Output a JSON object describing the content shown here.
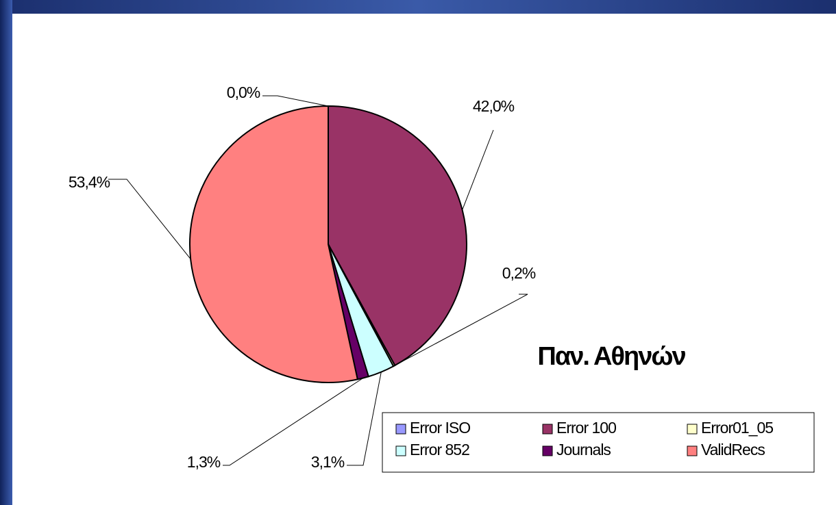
{
  "chart_data": {
    "type": "pie",
    "title": "Παν. Αθηνών",
    "categories": [
      "Error ISO",
      "Error 100",
      "Error01_05",
      "Error 852",
      "Journals",
      "ValidRecs"
    ],
    "values": [
      0.0,
      42.0,
      0.2,
      3.1,
      1.3,
      53.4
    ],
    "value_labels": [
      "0,0%",
      "42,0%",
      "0,2%",
      "3,1%",
      "1,3%",
      "53,4%"
    ],
    "colors": [
      "#9999ff",
      "#993366",
      "#ffffcc",
      "#ccffff",
      "#660066",
      "#ff8080"
    ],
    "legend": "bottom-right"
  }
}
